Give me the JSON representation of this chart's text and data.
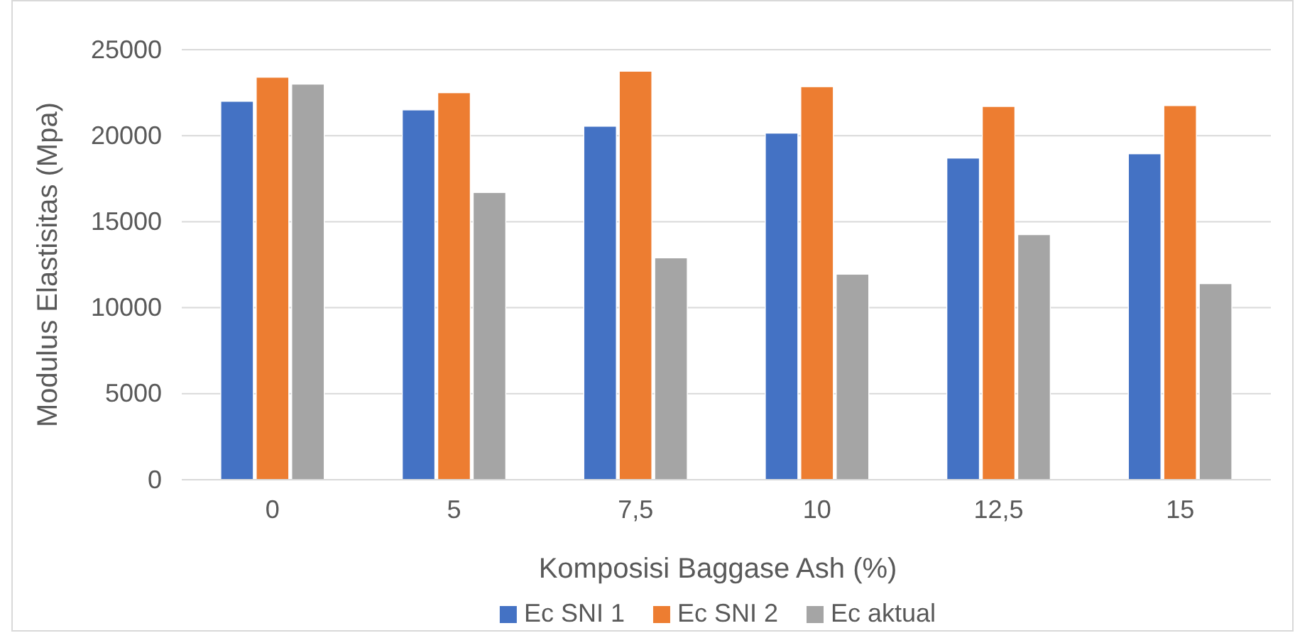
{
  "chart_data": {
    "type": "bar",
    "xlabel": "Komposisi Baggase Ash (%)",
    "ylabel": "Modulus Elastisitas (Mpa)",
    "categories": [
      "0",
      "5",
      "7,5",
      "10",
      "12,5",
      "15"
    ],
    "series": [
      {
        "name": "Ec SNI 1",
        "color": "#4472c4",
        "values": [
          22000,
          21500,
          20550,
          20150,
          18700,
          18950
        ]
      },
      {
        "name": "Ec SNI 2",
        "color": "#ed7d31",
        "values": [
          23400,
          22500,
          23750,
          22850,
          21700,
          21750
        ]
      },
      {
        "name": "Ec aktual",
        "color": "#a5a5a5",
        "values": [
          23000,
          16700,
          12900,
          11950,
          14250,
          11400
        ]
      }
    ],
    "ylim": [
      0,
      25000
    ],
    "yticks": [
      0,
      5000,
      10000,
      15000,
      20000,
      25000
    ],
    "grid": "y",
    "legend": "bottom"
  }
}
